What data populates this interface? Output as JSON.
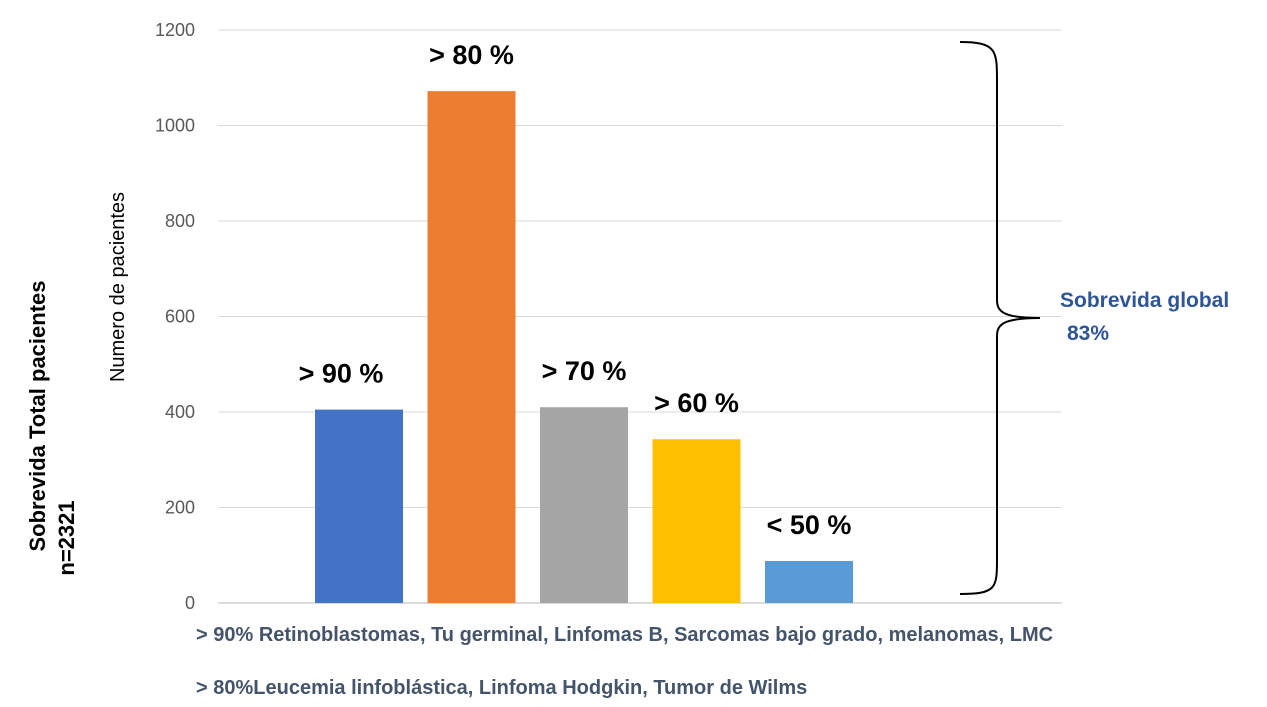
{
  "chart_data": {
    "type": "bar",
    "categories": [
      "> 90 %",
      "> 80 %",
      "> 70 %",
      "> 60 %",
      "< 50 %"
    ],
    "values": [
      405,
      1072,
      410,
      343,
      88
    ],
    "bar_labels": [
      "> 90 %",
      "> 80 %",
      "> 70 %",
      "> 60 %",
      "< 50 %"
    ],
    "colors": [
      "#4472c4",
      "#ed7d31",
      "#a5a5a5",
      "#ffc000",
      "#5b9bd5"
    ],
    "ylabel": "Numero de pacientes",
    "ylim": [
      0,
      1200
    ],
    "yticks": [
      0,
      200,
      400,
      600,
      800,
      1000,
      1200
    ],
    "ytick_labels": [
      "0",
      "200",
      "400",
      "600",
      "800",
      "1000",
      "1200"
    ],
    "grid": true,
    "legend": "none"
  },
  "side_title": {
    "line1": "Sobrevida Total pacientes",
    "line2": "n=2321"
  },
  "global_annotation": {
    "line1": "Sobrevida global",
    "line2": "83%",
    "color": "#2f5597"
  },
  "notes": [
    "> 90% Retinoblastomas, Tu germinal, Linfomas B, Sarcomas bajo grado, melanomas, LMC",
    "> 80%Leucemia linfoblástica, Linfoma Hodgkin, Tumor de Wilms"
  ],
  "note_color": "#44546a"
}
